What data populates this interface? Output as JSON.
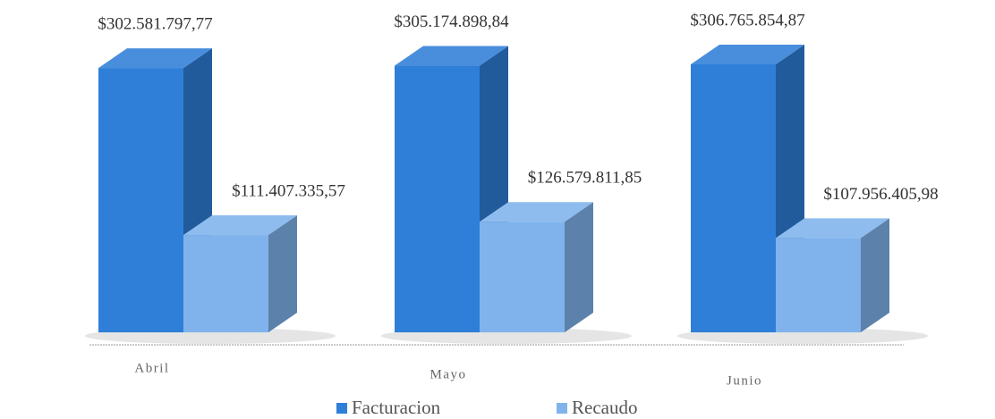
{
  "chart_data": {
    "type": "bar3d",
    "categories": [
      "Abril",
      "Mayo",
      "Junio"
    ],
    "series": [
      {
        "name": "Facturacion",
        "color": "#2f7fd8",
        "values": [
          302581797.77,
          305174898.84,
          306765854.87
        ],
        "value_labels": [
          "$302.581.797,77",
          "$305.174.898,84",
          "$306.765.854,87"
        ]
      },
      {
        "name": "Recaudo",
        "color": "#80b3ec",
        "values": [
          111407335.57,
          126579811.85,
          107956405.98
        ],
        "value_labels": [
          "$111.407.335,57",
          "$126.579.811,85",
          "$107.956.405,98"
        ]
      }
    ]
  }
}
